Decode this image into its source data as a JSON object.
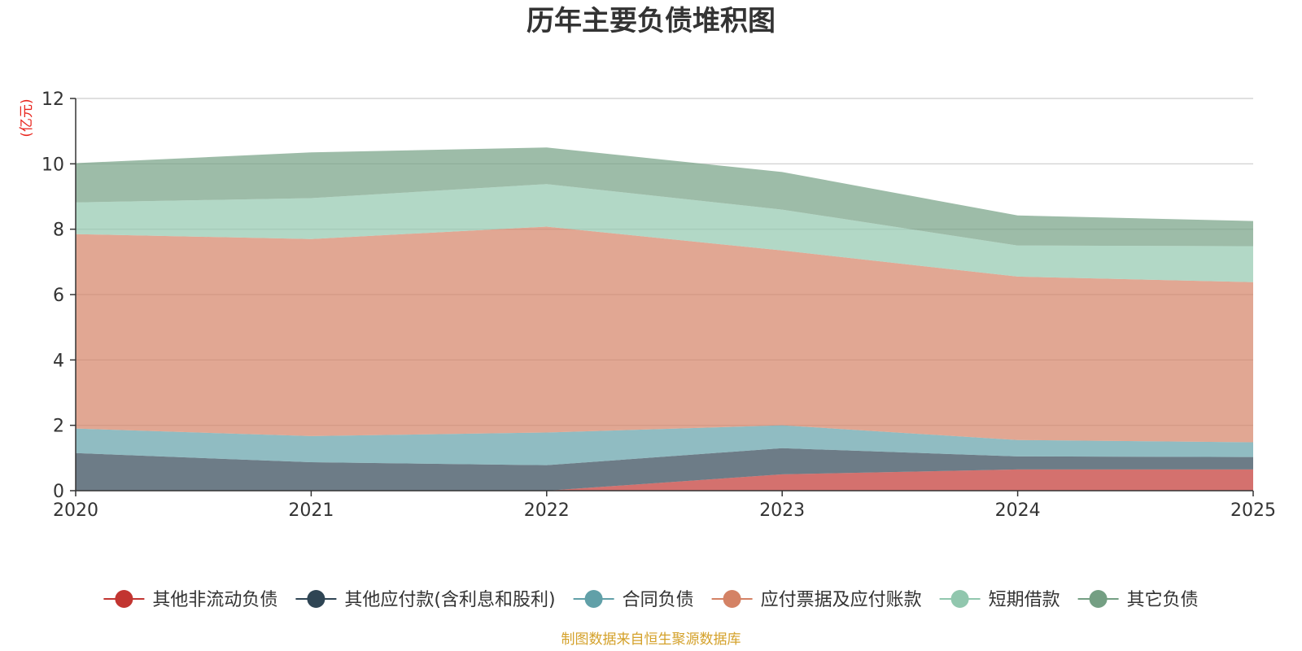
{
  "chart_data": {
    "type": "area",
    "stacked": true,
    "title": "历年主要负债堆积图",
    "unit_label": "(亿元)",
    "x": [
      "2020",
      "2021",
      "2022",
      "2023",
      "2024",
      "2025"
    ],
    "ylim": [
      0,
      12
    ],
    "yticks": [
      "0",
      "2",
      "4",
      "6",
      "8",
      "10",
      "12"
    ],
    "series": [
      {
        "name": "其他非流动负债",
        "color": "#c23531",
        "values": [
          0,
          0,
          0,
          0.5,
          0.65,
          0.65
        ]
      },
      {
        "name": "其他应付款(含利息和股利)",
        "color": "#2f4554",
        "values": [
          1.15,
          0.87,
          0.78,
          0.8,
          0.4,
          0.38
        ]
      },
      {
        "name": "合同负债",
        "color": "#61a0a8",
        "values": [
          0.75,
          0.8,
          1.0,
          0.7,
          0.5,
          0.45
        ]
      },
      {
        "name": "应付票据及应付账款",
        "color": "#d48265",
        "values": [
          5.95,
          6.03,
          6.3,
          5.35,
          5.0,
          4.9
        ]
      },
      {
        "name": "短期借款",
        "color": "#91c7ae",
        "values": [
          0.97,
          1.25,
          1.3,
          1.25,
          0.95,
          1.1
        ]
      },
      {
        "name": "其它负债",
        "color": "#749f83",
        "values": [
          1.2,
          1.4,
          1.12,
          1.15,
          0.92,
          0.77
        ]
      }
    ],
    "legend_position": "bottom",
    "grid": true
  },
  "footer": {
    "source_text": "制图数据来自恒生聚源数据库"
  }
}
